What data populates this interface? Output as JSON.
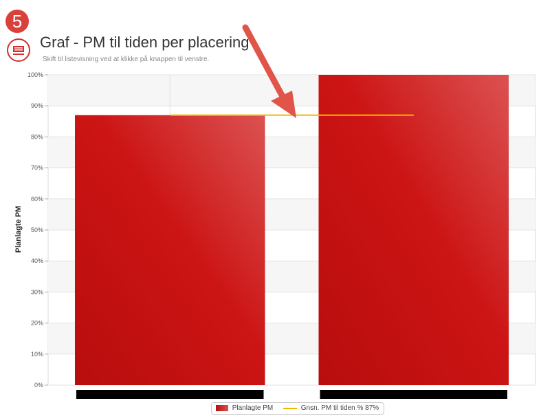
{
  "step_badge": "5",
  "header": {
    "title": "Graf - PM til tiden per placering",
    "subtitle": "Skift til listevisning ved at klikke på knappen til venstre."
  },
  "icons": {
    "toggle": "list-view-icon",
    "annotation": "arrow-icon"
  },
  "colors": {
    "bar": "#d01818",
    "average_line": "#f5b800",
    "badge": "#d9413a",
    "arrow": "#e0544a"
  },
  "legend": {
    "bar_label": "Planlagte PM",
    "line_label": "Gnsn. PM til tiden % 87%"
  },
  "chart_data": {
    "type": "bar",
    "categories": [
      "",
      ""
    ],
    "series": [
      {
        "name": "Planlagte PM",
        "values": [
          87,
          100
        ]
      }
    ],
    "average_line": {
      "name": "Gnsn. PM til tiden % 87%",
      "value": 87
    },
    "xlabel": "",
    "ylabel": "Planlagte PM",
    "ylim": [
      0,
      100
    ],
    "yticks": [
      "0%",
      "10%",
      "20%",
      "30%",
      "40%",
      "50%",
      "60%",
      "70%",
      "80%",
      "90%",
      "100%"
    ],
    "tick_step": 10,
    "grid": true,
    "legend_position": "bottom-center"
  }
}
